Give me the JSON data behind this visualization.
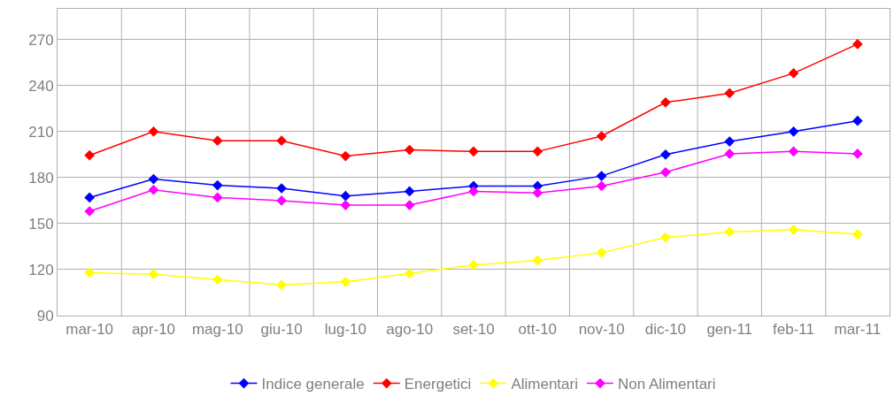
{
  "chart_data": {
    "type": "line",
    "categories": [
      "mar-10",
      "apr-10",
      "mag-10",
      "giu-10",
      "lug-10",
      "ago-10",
      "set-10",
      "ott-10",
      "nov-10",
      "dic-10",
      "gen-11",
      "feb-11",
      "mar-11"
    ],
    "series": [
      {
        "name": "Indice generale",
        "color": "#0000ff",
        "values": [
          167,
          179,
          175,
          173,
          168,
          171,
          174.5,
          174.5,
          181,
          195,
          203.5,
          210,
          217
        ]
      },
      {
        "name": "Energetici",
        "color": "#ff0000",
        "values": [
          194.5,
          210,
          204,
          204,
          194,
          198,
          197,
          197,
          207,
          229,
          235,
          248,
          267
        ]
      },
      {
        "name": "Alimentari",
        "color": "#ffff00",
        "values": [
          118,
          117,
          113.5,
          110,
          112,
          117.5,
          123,
          126,
          131,
          141,
          144.5,
          146,
          143
        ]
      },
      {
        "name": "Non Alimentari",
        "color": "#ff00ff",
        "values": [
          158,
          172,
          167,
          165,
          162,
          162,
          171,
          170,
          174.5,
          183.5,
          195.5,
          197,
          195.5
        ]
      }
    ],
    "ylim": [
      90,
      290
    ],
    "yticks": [
      90,
      120,
      150,
      180,
      210,
      240,
      270
    ],
    "grid": true,
    "legend": "bottom",
    "marker": "diamond",
    "line_style": "solid"
  }
}
